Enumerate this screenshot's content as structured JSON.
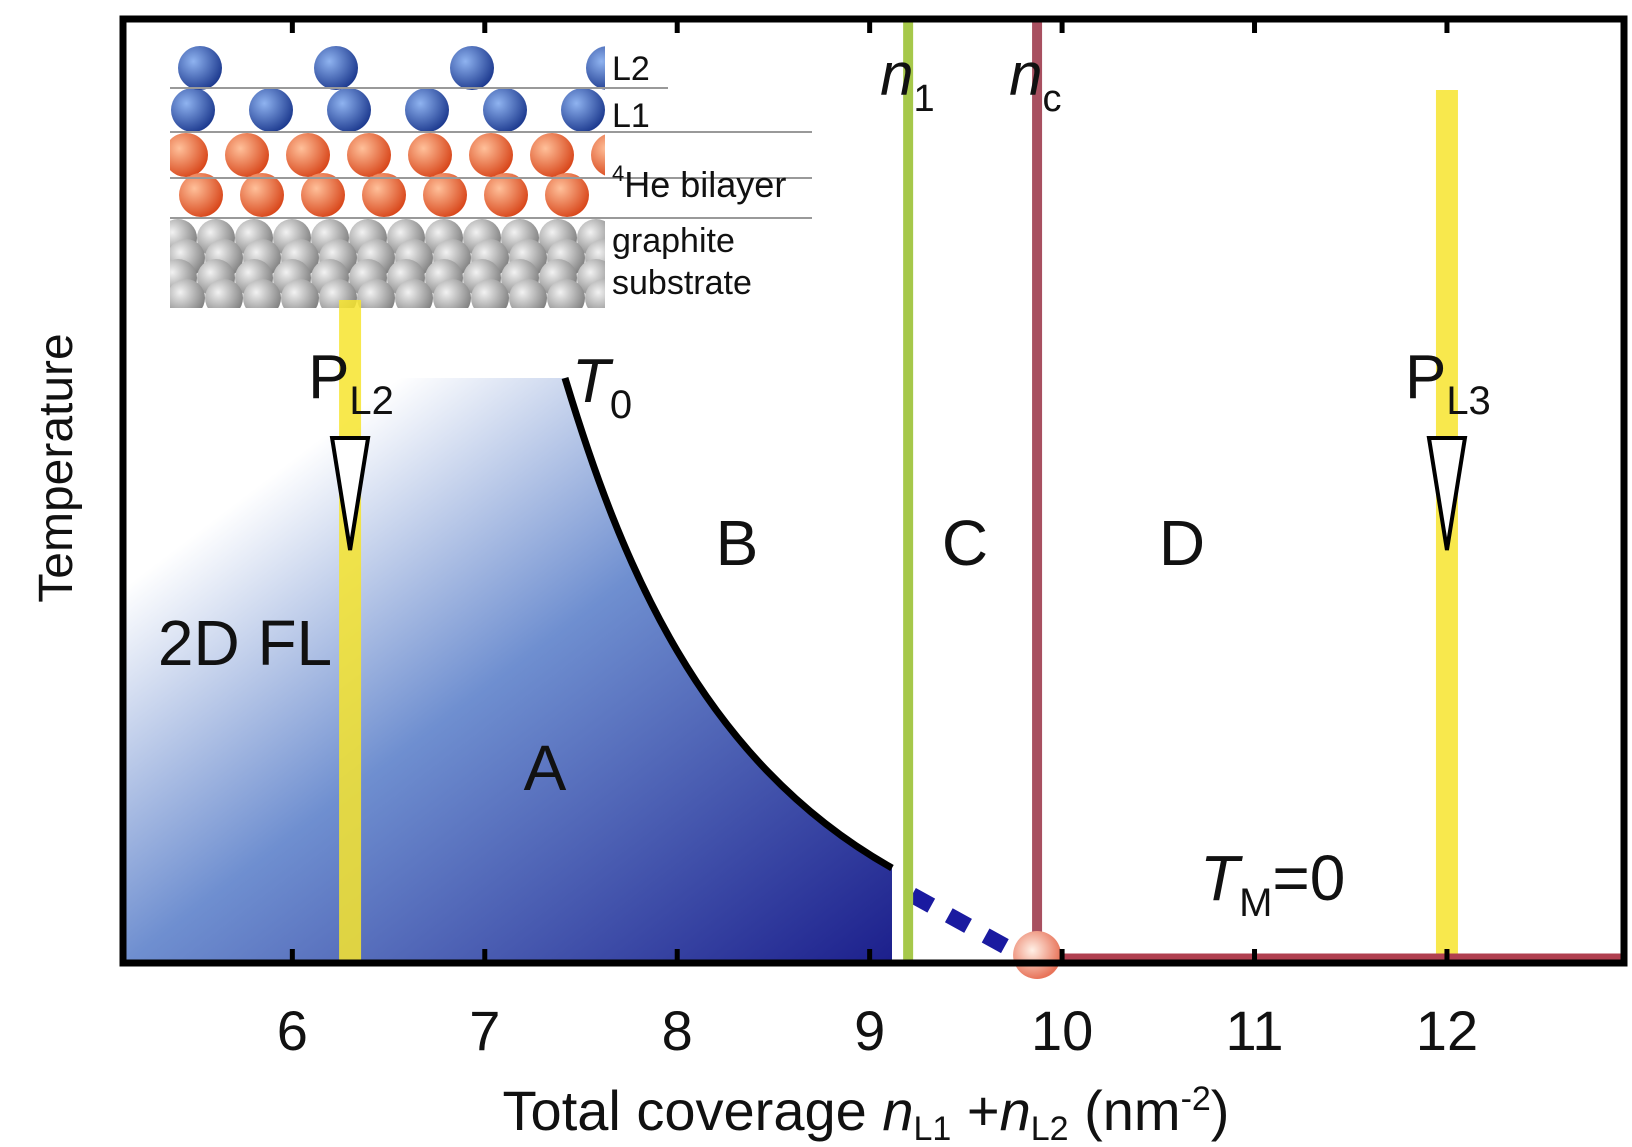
{
  "chart_data": {
    "type": "phase-diagram",
    "x_label": {
      "prefix": "Total coverage ",
      "n1": "n",
      "n1_sub": "L1",
      "plus": " +",
      "n2": "n",
      "n2_sub": "L2",
      "unit": " (nm",
      "unit_sup": "-2",
      "close": ")"
    },
    "y_label": "Temperature",
    "xlim": [
      5.12,
      12.92
    ],
    "xticks": [
      6,
      7,
      8,
      9,
      10,
      11,
      12
    ],
    "boundaries": [
      {
        "symbol": "n",
        "sub": "1",
        "x": 9.2,
        "color": "#a6c84a"
      },
      {
        "symbol": "n",
        "sub": "c",
        "x": 9.87,
        "color": "#a85060"
      }
    ],
    "probes": [
      {
        "symbol": "P",
        "sub": "L2",
        "x": 6.3,
        "color": "#f7e52e"
      },
      {
        "symbol": "P",
        "sub": "L3",
        "x": 12.0,
        "color": "#f7e52e"
      }
    ],
    "regions": [
      "2D FL",
      "A",
      "B",
      "C",
      "D"
    ],
    "curve_label": {
      "symbol": "T",
      "sub": "0"
    },
    "tm_label": {
      "symbol": "T",
      "sub": "M",
      "rest": "=0"
    },
    "inset_labels": {
      "l2": "L2",
      "l1": "L1",
      "he_sup": "4",
      "he": "He bilayer",
      "graphite": "graphite",
      "substrate": "substrate"
    }
  }
}
